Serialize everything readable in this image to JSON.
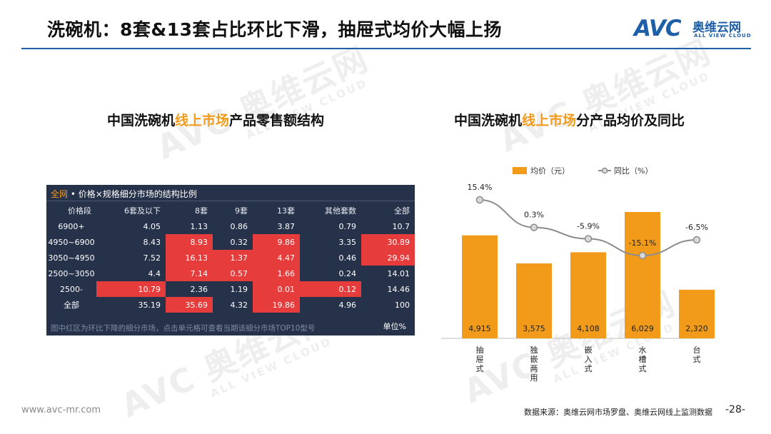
{
  "header": {
    "title": "洗碗机：8套&13套占比环比下滑，抽屉式均价大幅上扬",
    "logo_brand": "AVC",
    "logo_cn": "奥维云网",
    "logo_en": "ALL VIEW CLOUD"
  },
  "left_section": {
    "title_prefix": "中国洗碗机",
    "title_highlight": "线上市场",
    "title_suffix": "产品零售额结构"
  },
  "right_section": {
    "title_prefix": "中国洗碗机",
    "title_highlight": "线上市场",
    "title_suffix": "分产品均价及同比"
  },
  "table": {
    "caption_tag": "全网",
    "caption_text": "• 价格×规格细分市场的结构比例",
    "headers": [
      "价格段",
      "6套及以下",
      "8套",
      "9套",
      "13套",
      "其他套数",
      "全部"
    ],
    "rows": [
      {
        "label": "6900+",
        "cells": [
          "4.05",
          "1.13",
          "0.86",
          "3.87",
          "0.79",
          "10.7"
        ],
        "red": [
          false,
          false,
          false,
          false,
          false,
          false
        ]
      },
      {
        "label": "4950~6900",
        "cells": [
          "8.43",
          "8.93",
          "0.32",
          "9.86",
          "3.35",
          "30.89"
        ],
        "red": [
          false,
          true,
          false,
          true,
          false,
          true
        ]
      },
      {
        "label": "3050~4950",
        "cells": [
          "7.52",
          "16.13",
          "1.37",
          "4.47",
          "0.46",
          "29.94"
        ],
        "red": [
          false,
          true,
          true,
          true,
          false,
          true
        ]
      },
      {
        "label": "2500~3050",
        "cells": [
          "4.4",
          "7.14",
          "0.57",
          "1.66",
          "0.24",
          "14.01"
        ],
        "red": [
          false,
          true,
          true,
          true,
          false,
          false
        ]
      },
      {
        "label": "2500-",
        "cells": [
          "10.79",
          "2.36",
          "1.19",
          "0.01",
          "0.12",
          "14.46"
        ],
        "red": [
          true,
          false,
          false,
          true,
          true,
          false
        ]
      },
      {
        "label": "全部",
        "cells": [
          "35.19",
          "35.69",
          "4.32",
          "19.86",
          "4.96",
          "100"
        ],
        "red": [
          false,
          true,
          false,
          true,
          false,
          false
        ]
      }
    ],
    "footer_note": "图中红区为环比下降的细分市场，点击单元格可查看当期该细分市场TOP10型号",
    "unit": "单位%"
  },
  "chart_data": {
    "type": "bar",
    "categories": [
      "抽屉式",
      "独嵌两用",
      "嵌入式",
      "水槽式",
      "台式"
    ],
    "series": [
      {
        "name": "均价（元）",
        "type": "bar",
        "values": [
          4915,
          3575,
          4108,
          6029,
          2320
        ],
        "labels": [
          "4,915",
          "3,575",
          "4,108",
          "6,029",
          "2,320"
        ],
        "color": "#f29b1a"
      },
      {
        "name": "同比（%）",
        "type": "line",
        "values": [
          15.4,
          0.3,
          -5.9,
          -15.1,
          -6.5
        ],
        "labels": [
          "15.4%",
          "0.3%",
          "-5.9%",
          "-15.1%",
          "-6.5%"
        ],
        "color": "#8c8c8c"
      }
    ],
    "legend_position": "top",
    "grid": false
  },
  "footer": {
    "site": "www.avc-mr.com",
    "source": "数据来源：奥维云网市场罗盘、奥维云网线上监测数据",
    "page": "-28-"
  }
}
